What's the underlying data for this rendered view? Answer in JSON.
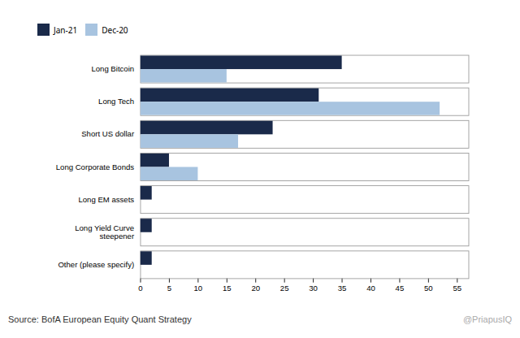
{
  "chart_data": {
    "type": "bar",
    "orientation": "horizontal",
    "categories": [
      "Other (please specify)",
      "Long Yield Curve\nsteepener",
      "Long EM assets",
      "Long Corporate Bonds",
      "Short US dollar",
      "Long Tech",
      "Long Bitcoin"
    ],
    "series": [
      {
        "name": "Jan-21",
        "color": "#1a2a4a",
        "values": [
          2,
          2,
          2,
          5,
          23,
          31,
          35
        ]
      },
      {
        "name": "Dec-20",
        "color": "#a8c4e0",
        "values": [
          0,
          0,
          0,
          10,
          17,
          52,
          15
        ]
      }
    ],
    "xlim": [
      0,
      57
    ],
    "xticks": [
      0,
      5,
      10,
      15,
      20,
      25,
      30,
      35,
      40,
      45,
      50,
      55
    ],
    "grid": false,
    "legend": "top",
    "annotations": [
      "@PriapusIQ"
    ],
    "caption": "Source: BofA European Equity Quant Strategy"
  }
}
